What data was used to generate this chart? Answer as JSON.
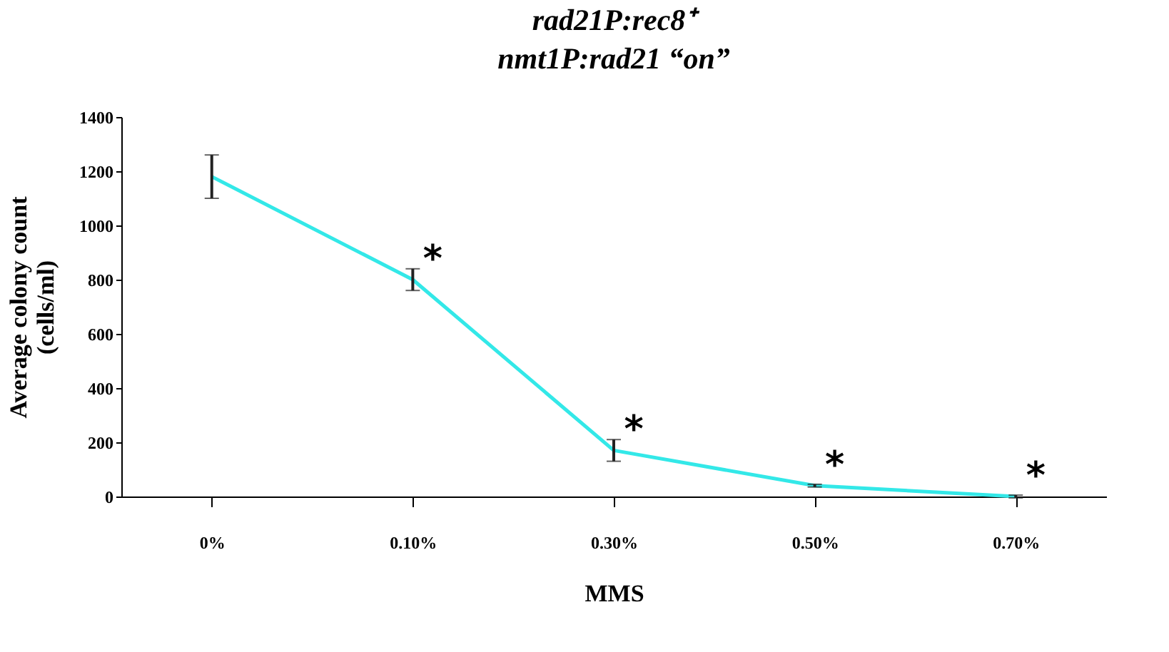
{
  "chart_data": {
    "type": "line",
    "title": "rad21P:rec8⁺",
    "subtitle": "nmt1P:rad21 “on”",
    "xlabel": "MMS",
    "ylabel": "Average colony count\n(cells/ml)",
    "categories": [
      "0%",
      "0.10%",
      "0.30%",
      "0.50%",
      "0.70%"
    ],
    "series": [
      {
        "color": "#33e8e8",
        "values": [
          1180,
          800,
          170,
          40,
          0
        ],
        "errors": [
          80,
          40,
          40,
          5,
          5
        ]
      }
    ],
    "ylim": [
      0,
      1400
    ],
    "yticks": [
      0,
      200,
      400,
      600,
      800,
      1000,
      1200,
      1400
    ],
    "annotations": [
      {
        "text": "*",
        "x": "0.10%",
        "y": 800
      },
      {
        "text": "*",
        "x": "0.30%",
        "y": 170
      },
      {
        "text": "*",
        "x": "0.50%",
        "y": 40
      },
      {
        "text": "*",
        "x": "0.70%",
        "y": 0
      }
    ]
  }
}
